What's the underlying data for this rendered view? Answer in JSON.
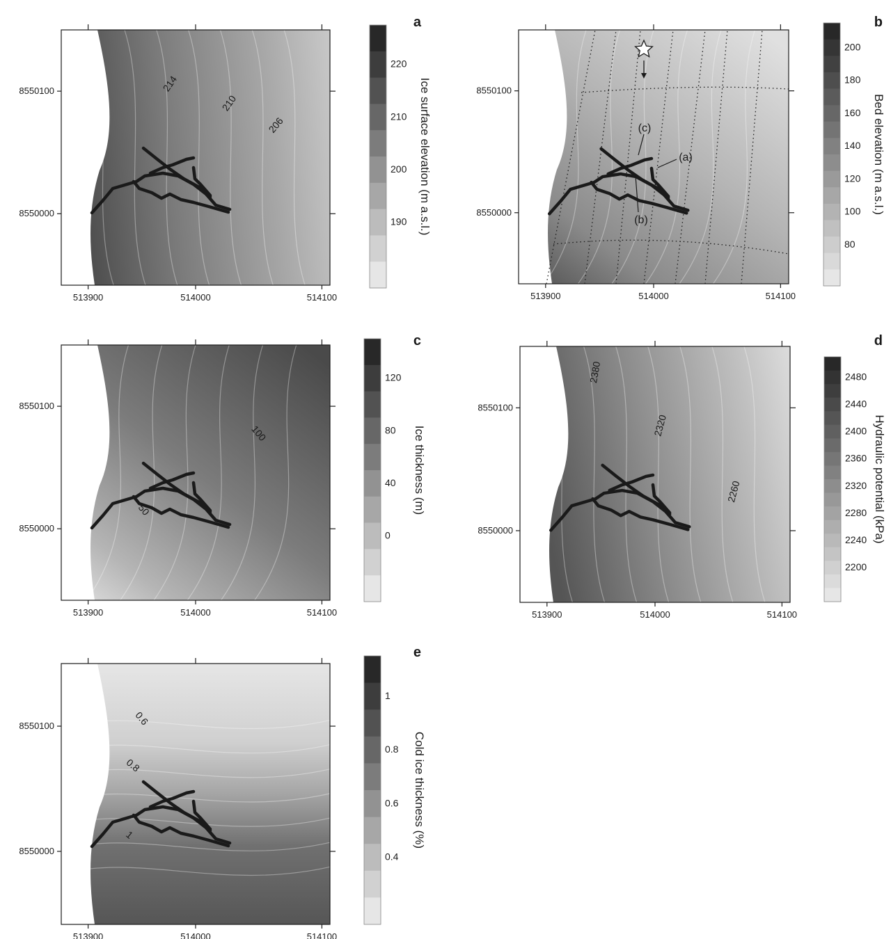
{
  "figure": {
    "x_ticks": [
      "513900",
      "514000",
      "514100"
    ],
    "y_ticks": [
      "8550100",
      "8550000"
    ]
  },
  "panels": [
    {
      "id": "a",
      "letter": "a",
      "colorbar_label": "Ice surface elevation (m a.s.l.)",
      "colorbar_ticks": [
        "220",
        "210",
        "200",
        "190"
      ],
      "contour_labels": [
        "214",
        "210",
        "206"
      ],
      "colorbar_range": [
        188,
        226
      ],
      "annotations": []
    },
    {
      "id": "b",
      "letter": "b",
      "colorbar_label": "Bed elevation (m a.s.l.)",
      "colorbar_ticks": [
        "200",
        "180",
        "160",
        "140",
        "120",
        "100",
        "80"
      ],
      "contour_labels": [],
      "colorbar_range": [
        70,
        210
      ],
      "annotations": [
        "(a)",
        "(b)",
        "(c)"
      ]
    },
    {
      "id": "c",
      "letter": "c",
      "colorbar_label": "Ice thickness (m)",
      "colorbar_ticks": [
        "120",
        "80",
        "40",
        "0"
      ],
      "contour_labels": [
        "100",
        "50"
      ],
      "colorbar_range": [
        0,
        140
      ],
      "annotations": []
    },
    {
      "id": "d",
      "letter": "d",
      "colorbar_label": "Hydraulic potential (kPa)",
      "colorbar_ticks": [
        "2480",
        "2440",
        "2400",
        "2360",
        "2320",
        "2280",
        "2240",
        "2200"
      ],
      "contour_labels": [
        "2380",
        "2320",
        "2260"
      ],
      "colorbar_range": [
        2190,
        2500
      ],
      "annotations": []
    },
    {
      "id": "e",
      "letter": "e",
      "colorbar_label": "Cold ice thickness (%)",
      "colorbar_ticks": [
        "1",
        "0.8",
        "0.6",
        "0.4"
      ],
      "contour_labels": [
        "0.6",
        "0.8",
        "1"
      ],
      "colorbar_range": [
        0.38,
        1.1
      ],
      "annotations": []
    }
  ],
  "colors": {
    "background": "#ffffff",
    "ink": "#1a1a1a",
    "dark_shade": "#333333",
    "light_shade": "#ececec"
  }
}
